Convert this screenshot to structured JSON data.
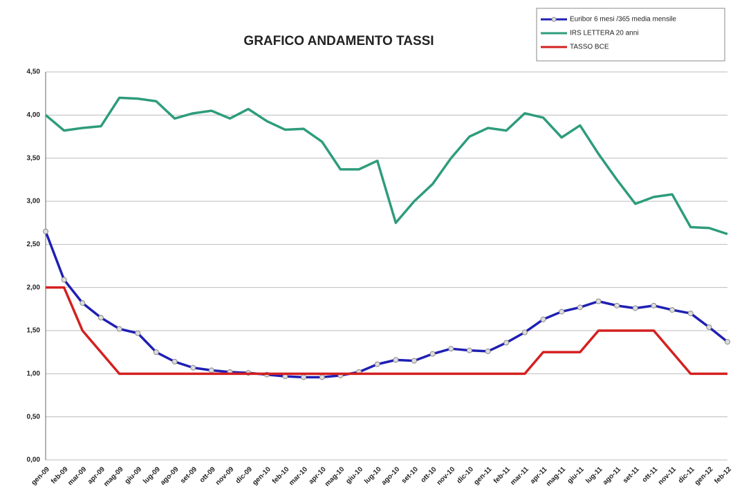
{
  "chart_data": {
    "type": "line",
    "title": "GRAFICO ANDAMENTO TASSI",
    "categories": [
      "gen-09",
      "feb-09",
      "mar-09",
      "apr-09",
      "mag-09",
      "giu-09",
      "lug-09",
      "ago-09",
      "set-09",
      "ott-09",
      "nov-09",
      "dic-09",
      "gen-10",
      "feb-10",
      "mar-10",
      "apr-10",
      "mag-10",
      "giu-10",
      "lug-10",
      "ago-10",
      "set-10",
      "ott-10",
      "nov-10",
      "dic-10",
      "gen-11",
      "feb-11",
      "mar-11",
      "apr-11",
      "mag-11",
      "giu-11",
      "lug-11",
      "ago-11",
      "set-11",
      "ott-11",
      "nov-11",
      "dic-11",
      "gen-12",
      "feb-12"
    ],
    "series": [
      {
        "name": "Euribor 6 mesi /365 media mensile",
        "color": "#1f1fb4",
        "marker": true,
        "values": [
          2.65,
          2.09,
          1.82,
          1.65,
          1.52,
          1.47,
          1.25,
          1.14,
          1.07,
          1.04,
          1.02,
          1.01,
          0.99,
          0.97,
          0.96,
          0.96,
          0.98,
          1.02,
          1.11,
          1.16,
          1.15,
          1.23,
          1.29,
          1.27,
          1.26,
          1.36,
          1.48,
          1.63,
          1.72,
          1.77,
          1.84,
          1.79,
          1.76,
          1.79,
          1.74,
          1.7,
          1.54,
          1.37
        ]
      },
      {
        "name": "IRS LETTERA 20 anni",
        "color": "#2e9c7c",
        "marker": false,
        "values": [
          4.0,
          3.82,
          3.85,
          3.87,
          4.2,
          4.19,
          4.16,
          3.96,
          4.02,
          4.05,
          3.96,
          4.07,
          3.93,
          3.83,
          3.84,
          3.69,
          3.37,
          3.37,
          3.47,
          2.75,
          3.0,
          3.2,
          3.5,
          3.75,
          3.85,
          3.82,
          4.02,
          3.97,
          3.74,
          3.88,
          3.55,
          3.25,
          2.97,
          3.05,
          3.08,
          2.7,
          2.69,
          2.62
        ]
      },
      {
        "name": "TASSO BCE",
        "color": "#d42020",
        "marker": false,
        "values": [
          2.0,
          2.0,
          1.5,
          1.25,
          1.0,
          1.0,
          1.0,
          1.0,
          1.0,
          1.0,
          1.0,
          1.0,
          1.0,
          1.0,
          1.0,
          1.0,
          1.0,
          1.0,
          1.0,
          1.0,
          1.0,
          1.0,
          1.0,
          1.0,
          1.0,
          1.0,
          1.0,
          1.25,
          1.25,
          1.25,
          1.5,
          1.5,
          1.5,
          1.5,
          1.25,
          1.0,
          1.0,
          1.0
        ]
      }
    ],
    "ylim": [
      0,
      4.5
    ],
    "yticks": [
      {
        "value": 0,
        "label": "0,00"
      },
      {
        "value": 0.5,
        "label": "0,50"
      },
      {
        "value": 1,
        "label": "1,00"
      },
      {
        "value": 1.5,
        "label": "1,50"
      },
      {
        "value": 2,
        "label": "2,00"
      },
      {
        "value": 2.5,
        "label": "2,50"
      },
      {
        "value": 3,
        "label": "3,00"
      },
      {
        "value": 3.5,
        "label": "3,50"
      },
      {
        "value": 4,
        "label": "4,00"
      },
      {
        "value": 4.5,
        "label": "4,50"
      }
    ],
    "grid": true
  }
}
